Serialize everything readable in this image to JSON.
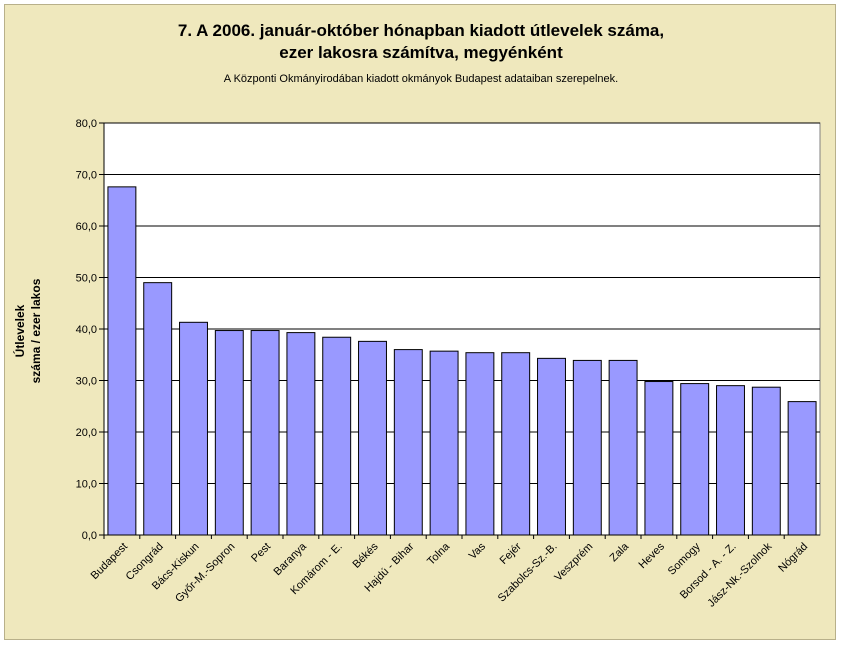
{
  "chart_data": {
    "type": "bar",
    "title_line1": "7. A 2006. január-október hónapban kiadott útlevelek száma,",
    "title_line2": "ezer lakosra számítva, megyénként",
    "subtitle": "A Központi Okmányirodában kiadott okmányok Budapest adataiban szerepelnek.",
    "ylabel_line1": "Útlevelek",
    "ylabel_line2": "száma / ezer lakos",
    "ylim": [
      0,
      80
    ],
    "yticks": [
      "0,0",
      "10,0",
      "20,0",
      "30,0",
      "40,0",
      "50,0",
      "60,0",
      "70,0",
      "80,0"
    ],
    "grid": true,
    "categories": [
      "Budapest",
      "Csongrád",
      "Bács-Kiskun",
      "Győr-M.-Sopron",
      "Pest",
      "Baranya",
      "Komárom - E.",
      "Békés",
      "Hajdú - Bihar",
      "Tolna",
      "Vas",
      "Fejér",
      "Szabolcs-Sz.-B.",
      "Veszprém",
      "Zala",
      "Heves",
      "Somogy",
      "Borsod - A. - Z.",
      "Jász-Nk.-Szolnok",
      "Nógrád"
    ],
    "values": [
      67.6,
      49.0,
      41.3,
      39.7,
      39.7,
      39.3,
      38.4,
      37.6,
      36.0,
      35.7,
      35.4,
      35.4,
      34.3,
      33.9,
      33.9,
      29.8,
      29.4,
      29.0,
      28.7,
      25.9
    ],
    "bar_color": "#9999ff",
    "plot_background": "#ffffff",
    "grid_color": "#000000"
  }
}
